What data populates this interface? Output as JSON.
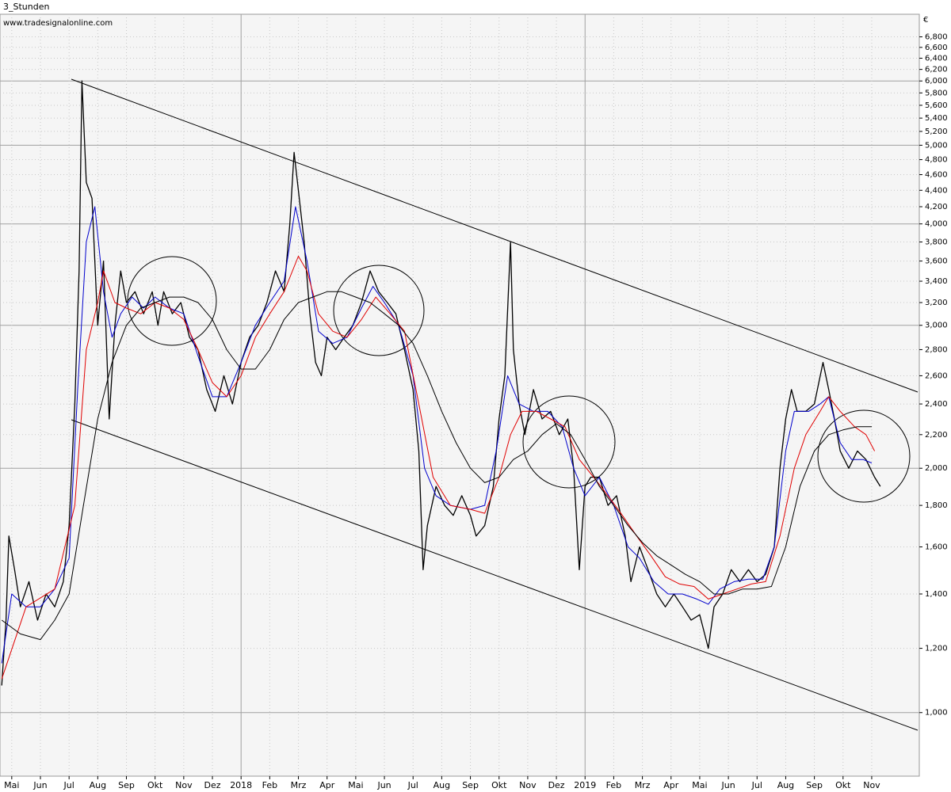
{
  "chart_data": {
    "type": "line",
    "title": "3_Stunden",
    "subtitle": "www.tradesignalonline.com",
    "currency": "€",
    "log_scale": true,
    "grid": true,
    "xlim": [
      -0.41,
      31.66
    ],
    "xticks": [
      {
        "value": 0,
        "label": "Mai"
      },
      {
        "value": 1,
        "label": "Jun"
      },
      {
        "value": 2,
        "label": "Jul"
      },
      {
        "value": 3,
        "label": "Aug"
      },
      {
        "value": 4,
        "label": "Sep"
      },
      {
        "value": 5,
        "label": "Okt"
      },
      {
        "value": 6,
        "label": "Nov"
      },
      {
        "value": 7,
        "label": "Dez"
      },
      {
        "value": 8,
        "label": "2018"
      },
      {
        "value": 9,
        "label": "Feb"
      },
      {
        "value": 10,
        "label": "Mrz"
      },
      {
        "value": 11,
        "label": "Apr"
      },
      {
        "value": 12,
        "label": "Mai"
      },
      {
        "value": 13,
        "label": "Jun"
      },
      {
        "value": 14,
        "label": "Jul"
      },
      {
        "value": 15,
        "label": "Aug"
      },
      {
        "value": 16,
        "label": "Sep"
      },
      {
        "value": 17,
        "label": "Okt"
      },
      {
        "value": 18,
        "label": "Nov"
      },
      {
        "value": 19,
        "label": "Dez"
      },
      {
        "value": 20,
        "label": "2019"
      },
      {
        "value": 21,
        "label": "Feb"
      },
      {
        "value": 22,
        "label": "Mrz"
      },
      {
        "value": 23,
        "label": "Apr"
      },
      {
        "value": 24,
        "label": "Mai"
      },
      {
        "value": 25,
        "label": "Jun"
      },
      {
        "value": 26,
        "label": "Jul"
      },
      {
        "value": 27,
        "label": "Aug"
      },
      {
        "value": 28,
        "label": "Sep"
      },
      {
        "value": 29,
        "label": "Okt"
      },
      {
        "value": 30,
        "label": "Nov"
      }
    ],
    "ylim": [
      835,
      7250
    ],
    "yticks": [
      {
        "value": 1000,
        "label": "1,000"
      },
      {
        "value": 1200,
        "label": "1,200"
      },
      {
        "value": 1400,
        "label": "1,400"
      },
      {
        "value": 1600,
        "label": "1,600"
      },
      {
        "value": 1800,
        "label": "1,800"
      },
      {
        "value": 2000,
        "label": "2,000"
      },
      {
        "value": 2200,
        "label": "2,200"
      },
      {
        "value": 2400,
        "label": "2,400"
      },
      {
        "value": 2600,
        "label": "2,600"
      },
      {
        "value": 2800,
        "label": "2,800"
      },
      {
        "value": 3000,
        "label": "3,000"
      },
      {
        "value": 3200,
        "label": "3,200"
      },
      {
        "value": 3400,
        "label": "3,400"
      },
      {
        "value": 3600,
        "label": "3,600"
      },
      {
        "value": 3800,
        "label": "3,800"
      },
      {
        "value": 4000,
        "label": "4,000"
      },
      {
        "value": 4200,
        "label": "4,200"
      },
      {
        "value": 4400,
        "label": "4,400"
      },
      {
        "value": 4600,
        "label": "4,600"
      },
      {
        "value": 4800,
        "label": "4,800"
      },
      {
        "value": 5000,
        "label": "5,000"
      },
      {
        "value": 5200,
        "label": "5,200"
      },
      {
        "value": 5400,
        "label": "5,400"
      },
      {
        "value": 5600,
        "label": "5,600"
      },
      {
        "value": 5800,
        "label": "5,800"
      },
      {
        "value": 6000,
        "label": "6,000"
      },
      {
        "value": 6200,
        "label": "6,200"
      },
      {
        "value": 6400,
        "label": "6,400"
      },
      {
        "value": 6600,
        "label": "6,600"
      },
      {
        "value": 6800,
        "label": "6,800"
      }
    ],
    "series": [
      {
        "color": "#000000",
        "width": 1.3,
        "x": [
          -0.35,
          -0.2,
          -0.1,
          0.1,
          0.3,
          0.6,
          0.9,
          1.2,
          1.5,
          1.8,
          2.0,
          2.2,
          2.35,
          2.45,
          2.6,
          2.8,
          3.0,
          3.2,
          3.4,
          3.6,
          3.8,
          4.0,
          4.3,
          4.6,
          4.9,
          5.1,
          5.3,
          5.6,
          5.9,
          6.2,
          6.5,
          6.8,
          7.1,
          7.4,
          7.7,
          8.0,
          8.3,
          8.6,
          8.9,
          9.2,
          9.5,
          9.7,
          9.85,
          10.0,
          10.2,
          10.4,
          10.6,
          10.8,
          11.0,
          11.3,
          11.6,
          11.9,
          12.2,
          12.5,
          12.8,
          13.1,
          13.4,
          13.7,
          14.0,
          14.2,
          14.35,
          14.5,
          14.8,
          15.1,
          15.4,
          15.7,
          16.0,
          16.2,
          16.5,
          16.8,
          17.0,
          17.2,
          17.4,
          17.5,
          17.7,
          17.9,
          18.2,
          18.5,
          18.8,
          19.1,
          19.4,
          19.6,
          19.8,
          20.0,
          20.2,
          20.5,
          20.8,
          21.1,
          21.4,
          21.6,
          21.9,
          22.2,
          22.5,
          22.8,
          23.1,
          23.4,
          23.7,
          24.0,
          24.3,
          24.5,
          24.8,
          25.1,
          25.4,
          25.7,
          26.0,
          26.3,
          26.6,
          26.8,
          27.0,
          27.2,
          27.4,
          27.7,
          28.0,
          28.3,
          28.5,
          28.7,
          28.9,
          29.2,
          29.5,
          29.8,
          30.1,
          30.3
        ],
        "values": [
          1080,
          1300,
          1650,
          1500,
          1350,
          1450,
          1300,
          1400,
          1350,
          1450,
          1700,
          2400,
          3500,
          6000,
          4500,
          4300,
          3000,
          3600,
          2300,
          3000,
          3500,
          3200,
          3300,
          3100,
          3300,
          3000,
          3300,
          3100,
          3200,
          2900,
          2800,
          2500,
          2350,
          2600,
          2400,
          2700,
          2900,
          3000,
          3200,
          3500,
          3300,
          4000,
          4900,
          4400,
          3800,
          3100,
          2700,
          2600,
          2900,
          2800,
          2900,
          3000,
          3200,
          3500,
          3300,
          3200,
          3100,
          2800,
          2500,
          2100,
          1500,
          1700,
          1900,
          1800,
          1750,
          1850,
          1750,
          1650,
          1700,
          1900,
          2300,
          2600,
          3800,
          2800,
          2400,
          2200,
          2500,
          2300,
          2350,
          2200,
          2300,
          2000,
          1500,
          1900,
          1950,
          1950,
          1800,
          1850,
          1650,
          1450,
          1600,
          1500,
          1400,
          1350,
          1400,
          1350,
          1300,
          1320,
          1200,
          1350,
          1400,
          1500,
          1450,
          1500,
          1450,
          1480,
          1600,
          2000,
          2300,
          2500,
          2350,
          2350,
          2400,
          2700,
          2500,
          2300,
          2100,
          2000,
          2100,
          2050,
          1950,
          1900
        ]
      },
      {
        "color": "#0000cc",
        "width": 1,
        "x": [
          -0.35,
          0,
          0.5,
          1.0,
          1.5,
          2.0,
          2.3,
          2.6,
          2.9,
          3.2,
          3.5,
          3.8,
          4.2,
          4.6,
          5.0,
          5.5,
          6.0,
          6.5,
          7.0,
          7.5,
          8.0,
          8.5,
          9.0,
          9.5,
          9.9,
          10.3,
          10.7,
          11.2,
          11.7,
          12.2,
          12.6,
          13.0,
          13.5,
          14.0,
          14.4,
          14.8,
          15.3,
          16.0,
          16.5,
          16.9,
          17.3,
          17.7,
          18.2,
          18.7,
          19.2,
          19.6,
          20.0,
          20.5,
          21.0,
          21.5,
          21.9,
          22.4,
          22.9,
          23.4,
          23.9,
          24.3,
          24.7,
          25.2,
          25.7,
          26.2,
          26.6,
          27.0,
          27.3,
          27.8,
          28.2,
          28.5,
          28.9,
          29.3,
          29.7,
          30.0
        ],
        "values": [
          1150,
          1400,
          1350,
          1350,
          1420,
          1550,
          2500,
          3800,
          4200,
          3300,
          2900,
          3100,
          3250,
          3150,
          3250,
          3150,
          3100,
          2750,
          2450,
          2450,
          2700,
          3000,
          3200,
          3400,
          4200,
          3600,
          2950,
          2850,
          2900,
          3150,
          3350,
          3200,
          3000,
          2600,
          2000,
          1850,
          1800,
          1780,
          1800,
          2100,
          2600,
          2400,
          2350,
          2350,
          2250,
          2000,
          1850,
          1950,
          1800,
          1600,
          1550,
          1450,
          1400,
          1400,
          1380,
          1360,
          1420,
          1450,
          1460,
          1460,
          1600,
          2100,
          2350,
          2350,
          2400,
          2450,
          2150,
          2050,
          2050,
          2030
        ]
      },
      {
        "color": "#e00000",
        "width": 1,
        "x": [
          -0.35,
          0.5,
          1.5,
          2.2,
          2.6,
          3.0,
          3.2,
          3.6,
          4.0,
          4.5,
          5.0,
          5.5,
          6.0,
          6.5,
          7.0,
          7.5,
          8.0,
          8.5,
          9.0,
          9.5,
          10.0,
          10.3,
          10.7,
          11.2,
          11.7,
          12.2,
          12.7,
          13.2,
          13.7,
          14.2,
          14.7,
          15.3,
          16.0,
          16.5,
          17.0,
          17.4,
          17.8,
          18.3,
          18.8,
          19.3,
          19.8,
          20.3,
          20.8,
          21.3,
          21.8,
          22.3,
          22.8,
          23.3,
          23.8,
          24.3,
          24.8,
          25.3,
          25.8,
          26.3,
          26.8,
          27.3,
          27.7,
          28.2,
          28.5,
          28.9,
          29.4,
          29.8,
          30.1
        ],
        "values": [
          1100,
          1350,
          1420,
          1800,
          2800,
          3200,
          3500,
          3200,
          3150,
          3100,
          3200,
          3150,
          3050,
          2800,
          2550,
          2450,
          2600,
          2900,
          3100,
          3300,
          3650,
          3500,
          3100,
          2950,
          2900,
          3050,
          3250,
          3100,
          2950,
          2400,
          1950,
          1800,
          1780,
          1760,
          1950,
          2200,
          2350,
          2350,
          2300,
          2250,
          2050,
          1950,
          1850,
          1750,
          1650,
          1560,
          1470,
          1440,
          1430,
          1380,
          1400,
          1420,
          1440,
          1450,
          1650,
          2000,
          2200,
          2350,
          2450,
          2350,
          2250,
          2200,
          2100
        ]
      },
      {
        "color": "#000000",
        "width": 1,
        "x": [
          -0.35,
          0.3,
          1.0,
          1.5,
          2.0,
          2.5,
          3.0,
          3.5,
          4.0,
          4.5,
          5.0,
          5.5,
          6.0,
          6.5,
          7.0,
          7.5,
          8.0,
          8.5,
          9.0,
          9.5,
          10.0,
          10.5,
          11.0,
          11.5,
          12.0,
          12.5,
          13.0,
          13.5,
          14.0,
          14.5,
          15.0,
          15.5,
          16.0,
          16.5,
          17.0,
          17.5,
          18.0,
          18.5,
          19.0,
          19.5,
          20.0,
          20.5,
          21.0,
          21.5,
          22.0,
          22.5,
          23.0,
          23.5,
          24.0,
          24.5,
          25.0,
          25.5,
          26.0,
          26.5,
          27.0,
          27.5,
          28.0,
          28.5,
          29.0,
          29.5,
          30.0
        ],
        "values": [
          1300,
          1250,
          1230,
          1300,
          1400,
          1800,
          2300,
          2700,
          3000,
          3150,
          3200,
          3250,
          3250,
          3200,
          3050,
          2800,
          2650,
          2650,
          2800,
          3050,
          3200,
          3250,
          3300,
          3300,
          3250,
          3200,
          3100,
          3000,
          2850,
          2600,
          2350,
          2150,
          2000,
          1920,
          1950,
          2050,
          2100,
          2200,
          2270,
          2200,
          2050,
          1900,
          1800,
          1700,
          1620,
          1560,
          1520,
          1480,
          1450,
          1400,
          1400,
          1420,
          1420,
          1430,
          1600,
          1900,
          2100,
          2200,
          2230,
          2250,
          2250
        ]
      }
    ]
  }
}
